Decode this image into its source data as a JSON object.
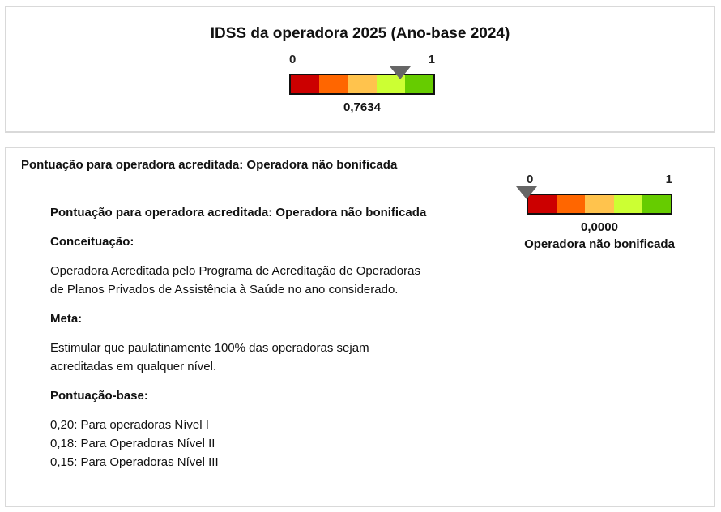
{
  "idss": {
    "title": "IDSS da operadora 2025 (Ano-base 2024)",
    "gauge": {
      "min_label": "0",
      "max_label": "1",
      "value": 0.7634,
      "value_label": "0,7634"
    }
  },
  "accreditation": {
    "section_title": "Pontuação para operadora acreditada: Operadora não bonificada",
    "gauge": {
      "min_label": "0",
      "max_label": "1",
      "value": 0,
      "value_label": "0,0000",
      "status": "Operadora não bonificada"
    },
    "heading": "Pontuação para operadora acreditada: Operadora não bonificada",
    "concept_title": "Conceituação:",
    "concept_lines": [
      "Operadora Acreditada pelo Programa de Acreditação de Operadoras",
      "de Planos Privados de Assistência à Saúde no ano considerado."
    ],
    "goal_title": "Meta:",
    "goal_lines": [
      "Estimular que paulatinamente 100% das operadoras sejam",
      "acreditadas em qualquer nível."
    ],
    "base_title": "Pontuação-base:",
    "base_items": [
      "0,20: Para operadoras Nível I",
      "0,18: Para Operadoras Nível II",
      "0,15: Para Operadoras Nível III"
    ]
  },
  "colors": {
    "segments": [
      "#cc0000",
      "#ff6600",
      "#ffc34d",
      "#ccff33",
      "#66cc00"
    ],
    "pointer": "#666666",
    "border": "#d9d9d9"
  }
}
